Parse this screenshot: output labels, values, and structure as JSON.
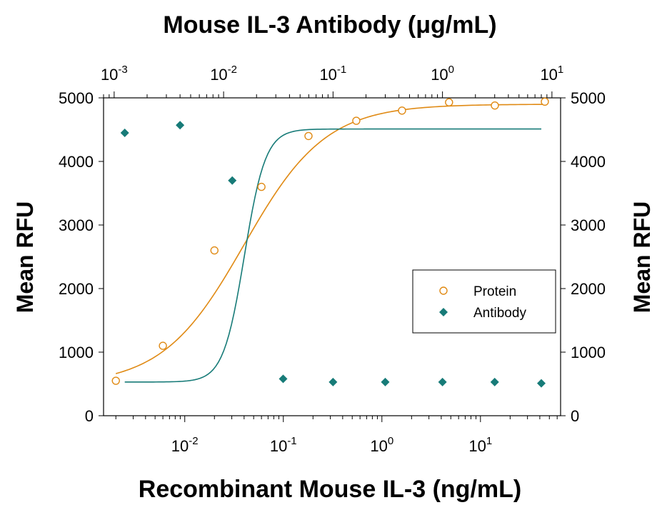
{
  "chart_data": {
    "type": "scatter",
    "title_top": "Mouse IL-3 Antibody (μg/mL)",
    "xlabel": "Recombinant Mouse IL-3 (ng/mL)",
    "ylabel_left": "Mean RFU",
    "ylabel_right": "Mean RFU",
    "x_scale": "log",
    "bottom_axis": {
      "range": [
        0.0015,
        65
      ],
      "ticks": [
        {
          "value": 0.01,
          "base": "10",
          "exp": "-2"
        },
        {
          "value": 0.1,
          "base": "10",
          "exp": "-1"
        },
        {
          "value": 1,
          "base": "10",
          "exp": "0"
        },
        {
          "value": 10,
          "base": "10",
          "exp": "1"
        }
      ]
    },
    "top_axis": {
      "range": [
        0.0008,
        12
      ],
      "ticks": [
        {
          "value": 0.001,
          "base": "10",
          "exp": "-3"
        },
        {
          "value": 0.01,
          "base": "10",
          "exp": "-2"
        },
        {
          "value": 0.1,
          "base": "10",
          "exp": "-1"
        },
        {
          "value": 1,
          "base": "10",
          "exp": "0"
        },
        {
          "value": 10,
          "base": "10",
          "exp": "1"
        }
      ]
    },
    "ylim": [
      0,
      5000
    ],
    "yticks": [
      "0",
      "1000",
      "2000",
      "3000",
      "4000",
      "5000"
    ],
    "legend_position": "right",
    "grid": false,
    "series": [
      {
        "name": "Protein",
        "axis": "bottom",
        "marker": "open-circle",
        "color": "#e08a14",
        "x": [
          0.002,
          0.006,
          0.02,
          0.06,
          0.18,
          0.55,
          1.6,
          4.8,
          14,
          45
        ],
        "y": [
          550,
          1100,
          2600,
          3600,
          4400,
          4640,
          4800,
          4930,
          4880,
          4940
        ],
        "fit": {
          "bottom": 480,
          "top": 4900,
          "ec50": 0.04,
          "hill": 1.05
        }
      },
      {
        "name": "Antibody",
        "axis": "top",
        "marker": "filled-diamond",
        "color": "#177b78",
        "x": [
          0.00125,
          0.004,
          0.012,
          0.035,
          0.1,
          0.3,
          1,
          3,
          8
        ],
        "y": [
          4450,
          4570,
          3700,
          580,
          530,
          530,
          530,
          530,
          510
        ],
        "fit": {
          "bottom": 530,
          "top": 4510,
          "ec50": 0.0155,
          "hill": 4.5
        }
      }
    ]
  }
}
